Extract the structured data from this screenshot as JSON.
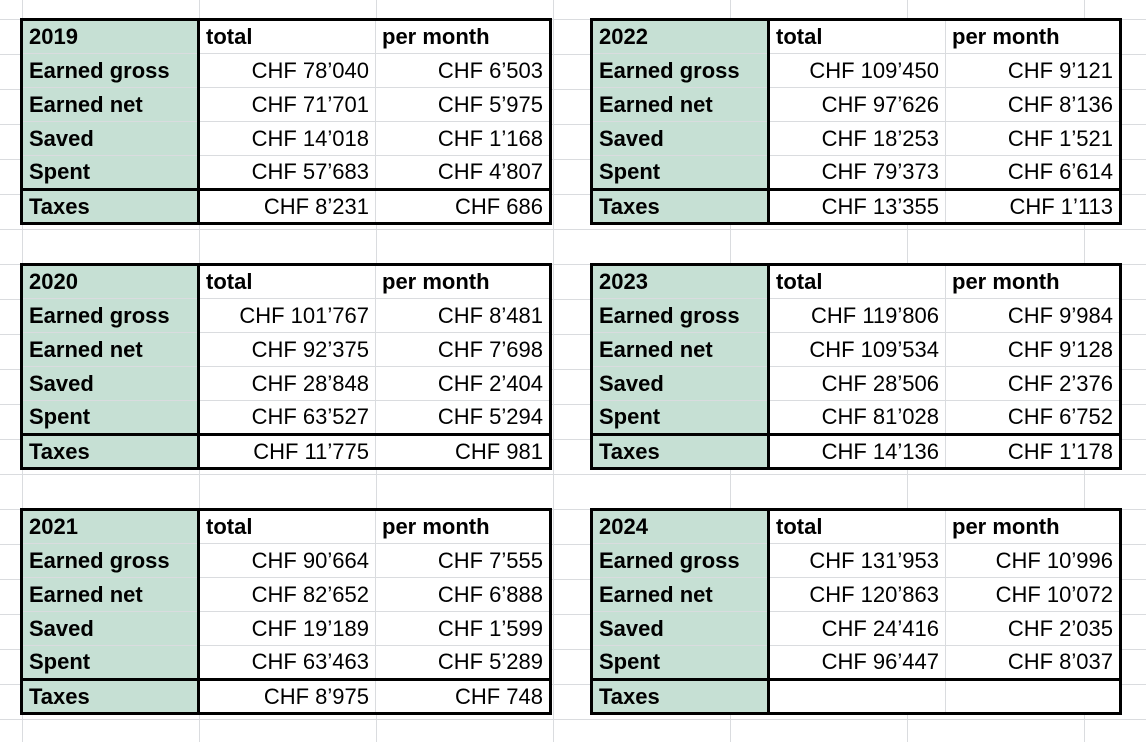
{
  "columns": {
    "total": "total",
    "per_month": "per month"
  },
  "tables": [
    {
      "year": "2019",
      "rows": [
        {
          "label": "Earned gross",
          "total": "CHF 78’040",
          "per_month": "CHF 6’503"
        },
        {
          "label": "Earned net",
          "total": "CHF 71’701",
          "per_month": "CHF 5’975"
        },
        {
          "label": "Saved",
          "total": "CHF 14’018",
          "per_month": "CHF 1’168"
        },
        {
          "label": "Spent",
          "total": "CHF 57’683",
          "per_month": "CHF 4’807"
        },
        {
          "label": "Taxes",
          "total": "CHF 8’231",
          "per_month": "CHF 686"
        }
      ]
    },
    {
      "year": "2020",
      "rows": [
        {
          "label": "Earned gross",
          "total": "CHF 101’767",
          "per_month": "CHF 8’481"
        },
        {
          "label": "Earned net",
          "total": "CHF 92’375",
          "per_month": "CHF 7’698"
        },
        {
          "label": "Saved",
          "total": "CHF 28’848",
          "per_month": "CHF 2’404"
        },
        {
          "label": "Spent",
          "total": "CHF 63’527",
          "per_month": "CHF 5’294"
        },
        {
          "label": "Taxes",
          "total": "CHF 11’775",
          "per_month": "CHF 981"
        }
      ]
    },
    {
      "year": "2021",
      "rows": [
        {
          "label": "Earned gross",
          "total": "CHF 90’664",
          "per_month": "CHF 7’555"
        },
        {
          "label": "Earned net",
          "total": "CHF 82’652",
          "per_month": "CHF 6’888"
        },
        {
          "label": "Saved",
          "total": "CHF 19’189",
          "per_month": "CHF 1’599"
        },
        {
          "label": "Spent",
          "total": "CHF 63’463",
          "per_month": "CHF 5’289"
        },
        {
          "label": "Taxes",
          "total": "CHF 8’975",
          "per_month": "CHF 748"
        }
      ]
    },
    {
      "year": "2022",
      "rows": [
        {
          "label": "Earned gross",
          "total": "CHF 109’450",
          "per_month": "CHF 9’121"
        },
        {
          "label": "Earned net",
          "total": "CHF 97’626",
          "per_month": "CHF 8’136"
        },
        {
          "label": "Saved",
          "total": "CHF 18’253",
          "per_month": "CHF 1’521"
        },
        {
          "label": "Spent",
          "total": "CHF 79’373",
          "per_month": "CHF 6’614"
        },
        {
          "label": "Taxes",
          "total": "CHF 13’355",
          "per_month": "CHF 1’113"
        }
      ]
    },
    {
      "year": "2023",
      "rows": [
        {
          "label": "Earned gross",
          "total": "CHF 119’806",
          "per_month": "CHF 9’984"
        },
        {
          "label": "Earned net",
          "total": "CHF 109’534",
          "per_month": "CHF 9’128"
        },
        {
          "label": "Saved",
          "total": "CHF 28’506",
          "per_month": "CHF 2’376"
        },
        {
          "label": "Spent",
          "total": "CHF 81’028",
          "per_month": "CHF 6’752"
        },
        {
          "label": "Taxes",
          "total": "CHF 14’136",
          "per_month": "CHF 1’178"
        }
      ]
    },
    {
      "year": "2024",
      "rows": [
        {
          "label": "Earned gross",
          "total": "CHF 131’953",
          "per_month": "CHF 10’996"
        },
        {
          "label": "Earned net",
          "total": "CHF 120’863",
          "per_month": "CHF 10’072"
        },
        {
          "label": "Saved",
          "total": "CHF 24’416",
          "per_month": "CHF 2’035"
        },
        {
          "label": "Spent",
          "total": "CHF 96’447",
          "per_month": "CHF 8’037"
        },
        {
          "label": "Taxes",
          "total": "",
          "per_month": ""
        }
      ]
    }
  ],
  "colors": {
    "label_fill": "#c6e0d4",
    "border": "#000000",
    "gridline": "#dadcdf"
  }
}
